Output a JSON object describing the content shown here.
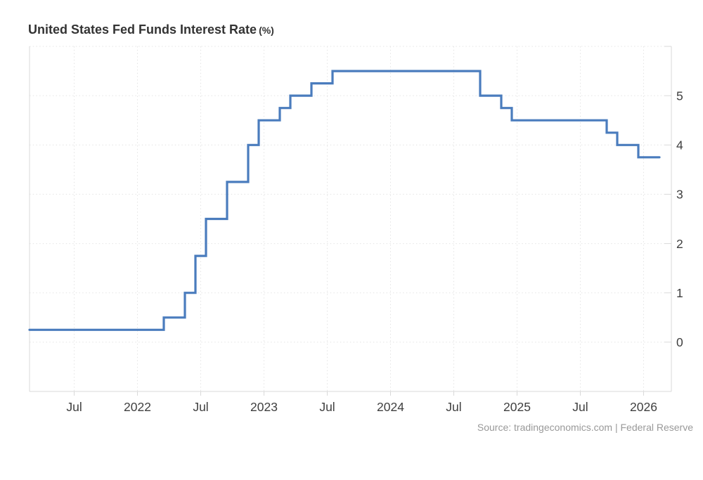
{
  "page": {
    "title": "United States Fed Funds Interest Rate",
    "title_unit": "(%)",
    "source_text": "Source: tradingeconomics.com | Federal Reserve"
  },
  "chart_data": {
    "type": "line",
    "step": true,
    "title": "United States Fed Funds Interest Rate (%)",
    "xlabel": "",
    "ylabel": "",
    "legend_position": "none",
    "grid": "dotted",
    "ylim": [
      -1,
      6
    ],
    "x_range_decimal_years": [
      2021.147,
      2026.164
    ],
    "y_ticks": [
      0,
      1,
      2,
      3,
      4,
      5
    ],
    "y_gridlines": [
      0,
      1,
      2,
      3,
      4,
      5,
      6
    ],
    "x_ticks": [
      {
        "pos": 2021.5,
        "label": "Jul"
      },
      {
        "pos": 2022.0,
        "label": "2022"
      },
      {
        "pos": 2022.5,
        "label": "Jul"
      },
      {
        "pos": 2023.0,
        "label": "2023"
      },
      {
        "pos": 2023.5,
        "label": "Jul"
      },
      {
        "pos": 2024.0,
        "label": "2024"
      },
      {
        "pos": 2024.5,
        "label": "Jul"
      },
      {
        "pos": 2025.0,
        "label": "2025"
      },
      {
        "pos": 2025.5,
        "label": "Jul"
      },
      {
        "pos": 2026.0,
        "label": "2026"
      }
    ],
    "series": [
      {
        "name": "Fed Funds Interest Rate (%)",
        "points": [
          {
            "date": "2021-02",
            "value": 0.25
          },
          {
            "date": "2022-03",
            "value": 0.5
          },
          {
            "date": "2022-05",
            "value": 1.0
          },
          {
            "date": "2022-06",
            "value": 1.75
          },
          {
            "date": "2022-07",
            "value": 2.5
          },
          {
            "date": "2022-09",
            "value": 3.25
          },
          {
            "date": "2022-11",
            "value": 4.0
          },
          {
            "date": "2022-12",
            "value": 4.5
          },
          {
            "date": "2023-02",
            "value": 4.75
          },
          {
            "date": "2023-03",
            "value": 5.0
          },
          {
            "date": "2023-05",
            "value": 5.25
          },
          {
            "date": "2023-07",
            "value": 5.5
          },
          {
            "date": "2024-09",
            "value": 5.0
          },
          {
            "date": "2024-11",
            "value": 4.75
          },
          {
            "date": "2024-12",
            "value": 4.5
          },
          {
            "date": "2025-09",
            "value": 4.25
          },
          {
            "date": "2025-10",
            "value": 4.0
          },
          {
            "date": "2025-12",
            "value": 3.75
          },
          {
            "date": "2026-02",
            "value": 3.75
          }
        ]
      }
    ],
    "colors": {
      "line": "#4a7cbd",
      "grid": "#e4e4e4",
      "axis": "#d9d9d9",
      "tick_label": "#3f3f3f",
      "title": "#333333",
      "source": "#999999",
      "background": "#ffffff"
    },
    "line_width": 3.2
  }
}
